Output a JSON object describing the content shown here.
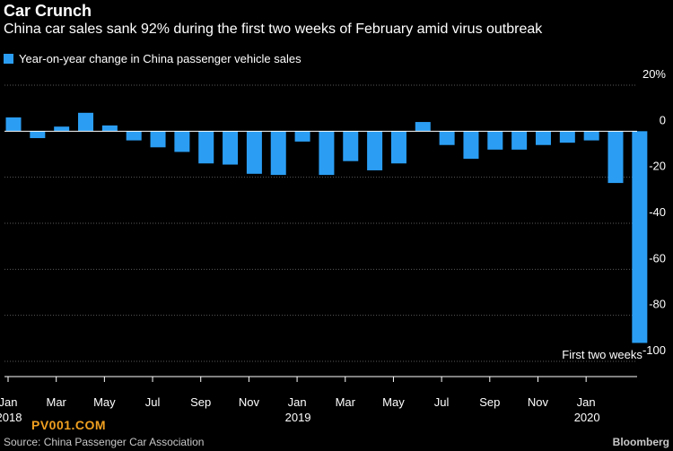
{
  "title": "Car Crunch",
  "subtitle": "China car sales sank 92% during the first two weeks of February amid virus outbreak",
  "legend": {
    "label": "Year-on-year change in China passenger vehicle sales",
    "color": "#2b9ef3"
  },
  "source": "Source: China Passenger Car Association",
  "brand": "Bloomberg",
  "watermark": "PV001.COM",
  "chart_data": {
    "type": "bar",
    "series": [
      {
        "color": "#2b9ef3",
        "values": [
          6,
          -3,
          2,
          8,
          2.5,
          -4,
          -7,
          -9,
          -14,
          -14.5,
          -18.5,
          -19,
          -4.5,
          -19,
          -13,
          -17,
          -14,
          4,
          -6,
          -12,
          -8,
          -8,
          -6,
          -5,
          -4,
          -22.5,
          -92
        ]
      }
    ],
    "categories": [
      "Jan 2018",
      "Feb 2018",
      "Mar 2018",
      "Apr 2018",
      "May 2018",
      "Jun 2018",
      "Jul 2018",
      "Aug 2018",
      "Sep 2018",
      "Oct 2018",
      "Nov 2018",
      "Dec 2018",
      "Jan 2019",
      "Feb 2019",
      "Mar 2019",
      "Apr 2019",
      "May 2019",
      "Jun 2019",
      "Jul 2019",
      "Aug 2019",
      "Sep 2019",
      "Oct 2019",
      "Nov 2019",
      "Dec 2019",
      "Jan 2020",
      "Feb 2020",
      "First two weeks"
    ],
    "x_tick_labels": [
      {
        "index": 0,
        "month": "Jan",
        "year": "2018"
      },
      {
        "index": 2,
        "month": "Mar"
      },
      {
        "index": 4,
        "month": "May"
      },
      {
        "index": 6,
        "month": "Jul"
      },
      {
        "index": 8,
        "month": "Sep"
      },
      {
        "index": 10,
        "month": "Nov"
      },
      {
        "index": 12,
        "month": "Jan",
        "year": "2019"
      },
      {
        "index": 14,
        "month": "Mar"
      },
      {
        "index": 16,
        "month": "May"
      },
      {
        "index": 18,
        "month": "Jul"
      },
      {
        "index": 20,
        "month": "Sep"
      },
      {
        "index": 22,
        "month": "Nov"
      },
      {
        "index": 24,
        "month": "Jan",
        "year": "2020"
      }
    ],
    "y_ticks": [
      {
        "value": 20,
        "label": "20%"
      },
      {
        "value": 0,
        "label": "0"
      },
      {
        "value": -20,
        "label": "-20"
      },
      {
        "value": -40,
        "label": "-40"
      },
      {
        "value": -60,
        "label": "-60"
      },
      {
        "value": -80,
        "label": "-80"
      },
      {
        "value": -100,
        "label": "-100"
      }
    ],
    "ylim": [
      -100,
      20
    ],
    "grid": true,
    "annotation": {
      "index": 26,
      "text": "First two weeks"
    }
  }
}
